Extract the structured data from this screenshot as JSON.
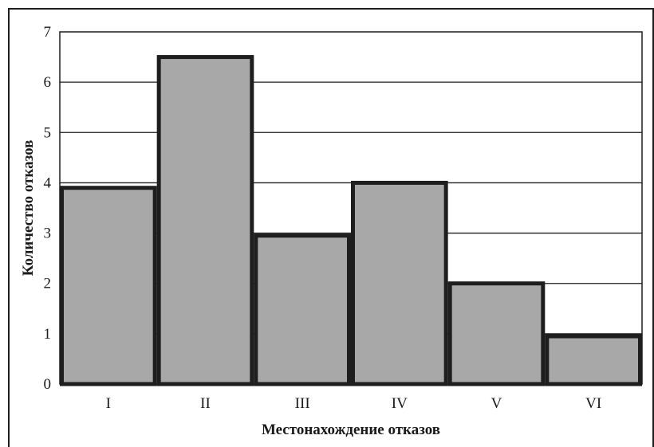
{
  "chart_data": {
    "type": "bar",
    "title": "",
    "xlabel": "Местонахождение отказов",
    "ylabel": "Количество  отказов",
    "categories": [
      "I",
      "II",
      "III",
      "IV",
      "V",
      "VI"
    ],
    "values": [
      3.9,
      6.5,
      2.95,
      4.0,
      2.0,
      0.95
    ],
    "ylim": [
      0,
      7
    ],
    "yticks": [
      "0",
      "1",
      "2",
      "3",
      "4",
      "5",
      "6",
      "7"
    ],
    "grid": true,
    "legend": "none",
    "colors": {
      "bar_fill": "#a8a8a8",
      "bar_stroke": "#1e1e1e",
      "grid": "#1e1e1e",
      "frame": "#1e1e1e"
    }
  }
}
